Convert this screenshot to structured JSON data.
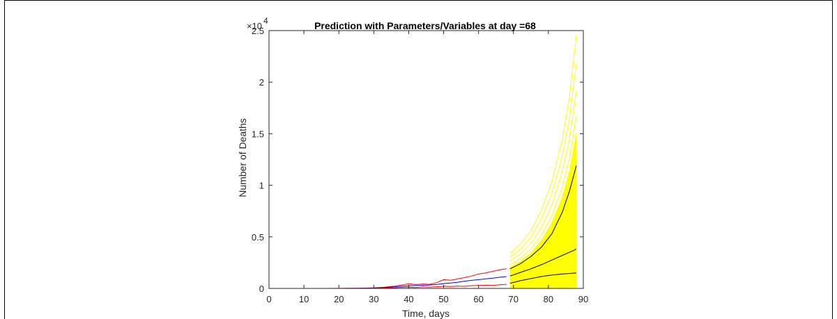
{
  "chart_data": {
    "type": "line",
    "title": "Prediction with Parameters/Variables at day =68",
    "xlabel": "Time, days",
    "ylabel": "Number of Deaths",
    "xlim": [
      0,
      90
    ],
    "ylim": [
      0,
      25000
    ],
    "xticks": [
      "0",
      "10",
      "20",
      "30",
      "40",
      "50",
      "60",
      "70",
      "80",
      "90"
    ],
    "yticks": [
      "0",
      "0.5",
      "1",
      "1.5",
      "2",
      "2.5"
    ],
    "y_exponent_base": "×10",
    "y_exponent_power": "4",
    "grid": false,
    "legend": "none",
    "colors": {
      "upper": "#ff0000",
      "lower": "#ff0000",
      "median": "#0000ff",
      "prediction_ensemble": "#ffff00",
      "prediction_summary": "#000000"
    },
    "series": [
      {
        "x": [
          0,
          5,
          10,
          15,
          20,
          25,
          30,
          33,
          36,
          38,
          40,
          42,
          44,
          46,
          48,
          50,
          52,
          54,
          56,
          58,
          60,
          62,
          64,
          66,
          68
        ],
        "y": [
          0,
          0,
          0,
          0,
          5,
          20,
          60,
          120,
          230,
          330,
          450,
          380,
          430,
          400,
          560,
          850,
          790,
          930,
          1050,
          1200,
          1400,
          1500,
          1650,
          1800,
          1900
        ]
      },
      {
        "x": [
          0,
          5,
          10,
          15,
          20,
          25,
          30,
          33,
          36,
          38,
          40,
          42,
          44,
          46,
          48,
          50,
          52,
          54,
          56,
          58,
          60,
          62,
          64,
          66,
          68
        ],
        "y": [
          0,
          0,
          0,
          0,
          3,
          10,
          40,
          80,
          150,
          210,
          250,
          280,
          300,
          330,
          380,
          470,
          520,
          600,
          700,
          780,
          850,
          920,
          990,
          1080,
          1150
        ]
      },
      {
        "x": [
          0,
          5,
          10,
          15,
          20,
          25,
          30,
          33,
          36,
          38,
          40,
          42,
          44,
          46,
          48,
          50,
          52,
          54,
          56,
          58,
          60,
          62,
          64,
          66,
          68
        ],
        "y": [
          0,
          0,
          0,
          0,
          2,
          5,
          20,
          40,
          70,
          100,
          120,
          90,
          150,
          120,
          160,
          210,
          180,
          230,
          200,
          260,
          280,
          310,
          290,
          360,
          400
        ]
      },
      {
        "x": [
          69,
          72,
          75,
          78,
          81,
          84,
          86,
          88
        ],
        "y": [
          1900,
          2400,
          3100,
          4000,
          5300,
          7400,
          9400,
          11900
        ]
      },
      {
        "x": [
          69,
          72,
          75,
          78,
          81,
          84,
          86,
          88
        ],
        "y": [
          1200,
          1550,
          1900,
          2300,
          2750,
          3200,
          3500,
          3800
        ]
      },
      {
        "x": [
          69,
          72,
          75,
          78,
          81,
          84,
          86,
          88
        ],
        "y": [
          500,
          750,
          950,
          1150,
          1300,
          1400,
          1450,
          1500
        ]
      }
    ],
    "prediction_band": {
      "x": [
        69,
        72,
        75,
        78,
        81,
        84,
        86,
        88
      ],
      "upper": [
        3400,
        4300,
        5600,
        7600,
        10400,
        14500,
        18500,
        24500
      ],
      "lower": [
        0,
        0,
        0,
        0,
        0,
        0,
        0,
        0
      ]
    }
  }
}
